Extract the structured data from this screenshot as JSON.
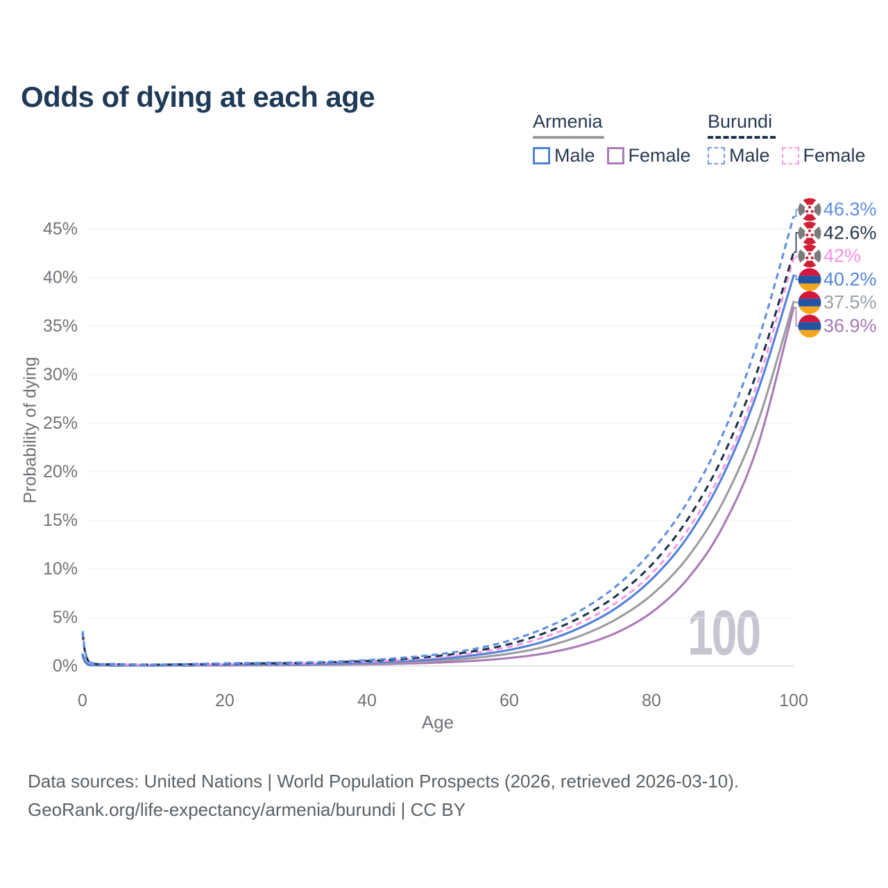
{
  "title": "Odds of dying at each age",
  "legend": {
    "groups": [
      {
        "name": "Armenia",
        "line_style": "solid",
        "underline_color": "#9a9aa0",
        "items": [
          {
            "label": "Male",
            "color": "#4f82d6",
            "dashed": false
          },
          {
            "label": "Female",
            "color": "#a97bb5",
            "dashed": false
          }
        ]
      },
      {
        "name": "Burundi",
        "line_style": "dashed",
        "underline_color": "#1d3247",
        "items": [
          {
            "label": "Male",
            "color": "#6f9be8",
            "dashed": true
          },
          {
            "label": "Female",
            "color": "#fb99e8",
            "dashed": true
          }
        ]
      }
    ]
  },
  "chart_data": {
    "type": "line",
    "title": "Odds of dying at each age",
    "xlabel": "Age",
    "ylabel": "Probability of dying",
    "xlim": [
      0,
      100
    ],
    "ylim": [
      0,
      47.5
    ],
    "grid": true,
    "legend_position": "top-right",
    "watermark": "100",
    "xticks": [
      0,
      20,
      40,
      60,
      80,
      100
    ],
    "yticks": [
      {
        "value": 0,
        "label": "0%"
      },
      {
        "value": 5,
        "label": "5%"
      },
      {
        "value": 10,
        "label": "10%"
      },
      {
        "value": 15,
        "label": "15%"
      },
      {
        "value": 20,
        "label": "20%"
      },
      {
        "value": 25,
        "label": "25%"
      },
      {
        "value": 30,
        "label": "30%"
      },
      {
        "value": 35,
        "label": "35%"
      },
      {
        "value": 40,
        "label": "40%"
      },
      {
        "value": 45,
        "label": "45%"
      }
    ],
    "x": [
      0,
      1,
      5,
      10,
      15,
      20,
      25,
      30,
      35,
      40,
      45,
      50,
      55,
      60,
      65,
      70,
      75,
      80,
      85,
      90,
      95,
      100
    ],
    "series": [
      {
        "name": "Burundi male",
        "country": "Burundi",
        "sex": "Male",
        "color": "#5e8fe0",
        "dashed": true,
        "flag": "burundi",
        "end_label": "46.3%",
        "label_color": "#5e8fe0",
        "values": [
          3.6,
          0.4,
          0.2,
          0.16,
          0.2,
          0.28,
          0.32,
          0.36,
          0.45,
          0.6,
          0.85,
          1.2,
          1.75,
          2.6,
          3.9,
          5.7,
          8.2,
          11.8,
          16.8,
          23.8,
          33.5,
          46.3
        ]
      },
      {
        "name": "Burundi both sexes",
        "country": "Burundi",
        "sex": "Both",
        "color": "#1d3247",
        "dashed": true,
        "flag": "burundi",
        "end_label": "42.6%",
        "label_color": "#233448",
        "values": [
          3.4,
          0.36,
          0.18,
          0.14,
          0.17,
          0.23,
          0.27,
          0.31,
          0.39,
          0.52,
          0.73,
          1.04,
          1.52,
          2.25,
          3.4,
          5.0,
          7.2,
          10.4,
          15.0,
          21.5,
          30.6,
          42.6
        ]
      },
      {
        "name": "Burundi female",
        "country": "Burundi",
        "sex": "Female",
        "color": "#fb99e8",
        "dashed": true,
        "flag": "burundi",
        "end_label": "42%",
        "label_color": "#fb8fe5",
        "values": [
          3.2,
          0.33,
          0.16,
          0.12,
          0.14,
          0.19,
          0.23,
          0.27,
          0.34,
          0.45,
          0.63,
          0.9,
          1.32,
          1.97,
          3.0,
          4.45,
          6.5,
          9.5,
          13.9,
          20.2,
          29.3,
          42.0
        ]
      },
      {
        "name": "Armenia male",
        "country": "Armenia",
        "sex": "Male",
        "color": "#4f82d6",
        "dashed": false,
        "flag": "armenia",
        "end_label": "40.2%",
        "label_color": "#5585d8",
        "values": [
          1.2,
          0.1,
          0.05,
          0.05,
          0.08,
          0.13,
          0.16,
          0.19,
          0.25,
          0.35,
          0.5,
          0.73,
          1.1,
          1.65,
          2.55,
          3.95,
          5.95,
          8.9,
          13.2,
          19.5,
          28.4,
          40.2
        ]
      },
      {
        "name": "Armenia both sexes",
        "country": "Armenia",
        "sex": "Both",
        "color": "#9b9ba1",
        "dashed": false,
        "flag": "armenia",
        "end_label": "37.5%",
        "label_color": "#9aa0a6",
        "values": [
          1.1,
          0.09,
          0.04,
          0.04,
          0.06,
          0.1,
          0.12,
          0.14,
          0.19,
          0.26,
          0.38,
          0.55,
          0.83,
          1.27,
          1.97,
          3.1,
          4.8,
          7.3,
          11.1,
          16.8,
          25.2,
          37.5
        ]
      },
      {
        "name": "Armenia female",
        "country": "Armenia",
        "sex": "Female",
        "color": "#a97bb5",
        "dashed": false,
        "flag": "armenia",
        "end_label": "36.9%",
        "label_color": "#a678b8",
        "values": [
          1.0,
          0.08,
          0.03,
          0.03,
          0.04,
          0.06,
          0.08,
          0.1,
          0.13,
          0.17,
          0.24,
          0.35,
          0.53,
          0.82,
          1.3,
          2.1,
          3.4,
          5.5,
          8.9,
          14.3,
          22.8,
          36.9
        ]
      }
    ],
    "flag_colors": {
      "armenia": {
        "red": "#d6173d",
        "blue": "#2155a3",
        "orange": "#f7a51b"
      },
      "burundi": {
        "red": "#cf2038",
        "side": "#7b7b7b",
        "white": "#ffffff"
      }
    },
    "grid_color": "#ececef",
    "baseline_color": "#dcdce0"
  },
  "footer": {
    "line1": "Data sources: United Nations | World Population Prospects (2026, retrieved 2026-03-10).",
    "line2": "GeoRank.org/life-expectancy/armenia/burundi | CC BY"
  }
}
